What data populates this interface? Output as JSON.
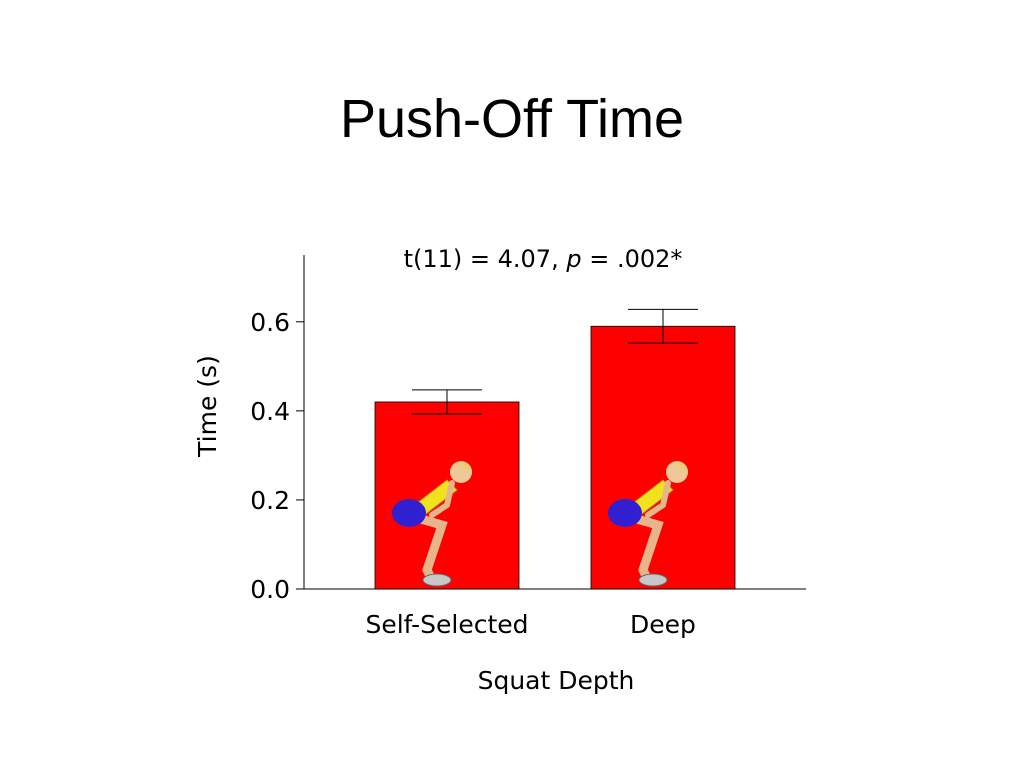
{
  "chart_data": {
    "type": "bar",
    "title": "Push-Off Time",
    "annotation": [
      "t(11) = 4.07, ",
      "p",
      " = .002*"
    ],
    "x_label": "Squat Depth",
    "y_label": "Time (s)",
    "categories": [
      "Self-Selected",
      "Deep"
    ],
    "values": [
      0.42,
      0.59
    ],
    "errors": [
      0.027,
      0.038
    ],
    "color": "#ff0000",
    "ylim": [
      0,
      0.75
    ],
    "yticks": [
      {
        "value": 0,
        "label": "0.0"
      },
      {
        "value": 0.2,
        "label": "0.2"
      },
      {
        "value": 0.4,
        "label": "0.4"
      },
      {
        "value": 0.6,
        "label": "0.6"
      }
    ],
    "grid": false
  }
}
